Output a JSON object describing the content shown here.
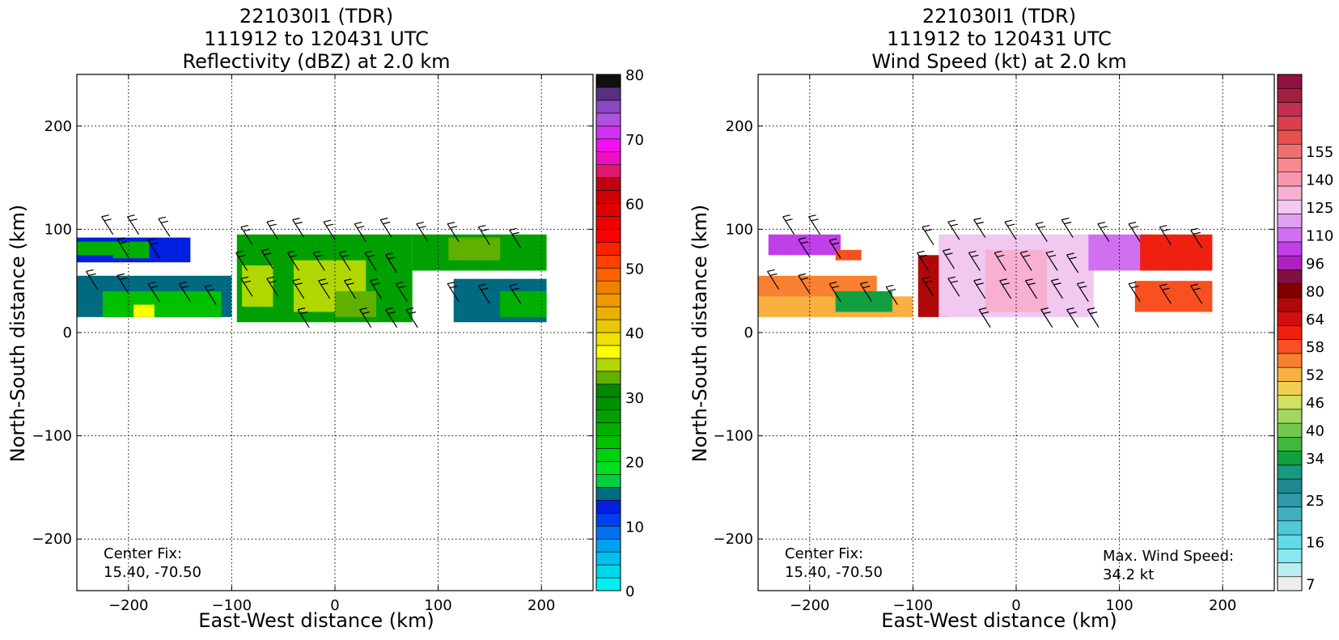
{
  "chart_data": [
    {
      "type": "heatmap",
      "title_lines": [
        "221030I1 (TDR)",
        "111912 to 120431 UTC",
        "Reflectivity (dBZ) at 2.0 km"
      ],
      "xlabel": "East-West distance (km)",
      "ylabel": "North-South distance (km)",
      "xlim": [
        -250,
        250
      ],
      "ylim": [
        -250,
        250
      ],
      "xticks": [
        -200,
        -100,
        0,
        100,
        200
      ],
      "yticks": [
        -200,
        -100,
        0,
        100,
        200
      ],
      "tick_labels_x": [
        "−200",
        "−100",
        "0",
        "100",
        "200"
      ],
      "tick_labels_y": [
        "−200",
        "−100",
        "0",
        "100",
        "200"
      ],
      "grid": true,
      "annotation": {
        "line1": "Center Fix:",
        "line2": "15.40, -70.50"
      },
      "colorbar": {
        "min": 0,
        "max": 80,
        "tick_values": [
          0,
          10,
          20,
          30,
          40,
          50,
          60,
          70,
          80
        ],
        "tick_labels": [
          "0",
          "10",
          "20",
          "30",
          "40",
          "50",
          "60",
          "70",
          "80"
        ],
        "colors": [
          "#00f0f0",
          "#00d8e8",
          "#00c0f0",
          "#00a0f0",
          "#0070f0",
          "#0040f0",
          "#0020e0",
          "#006a80",
          "#00d040",
          "#00e020",
          "#00d010",
          "#00c000",
          "#00b000",
          "#00a000",
          "#009000",
          "#008800",
          "#60b000",
          "#b0d800",
          "#ffff00",
          "#f0e000",
          "#e8c800",
          "#e8b000",
          "#f09800",
          "#f08000",
          "#ff6000",
          "#ff4000",
          "#ff2000",
          "#ff0000",
          "#f00000",
          "#e00000",
          "#d00000",
          "#c00010",
          "#e01870",
          "#ee10c0",
          "#f010f0",
          "#d030f0",
          "#b050e0",
          "#8848c0",
          "#583080",
          "#101010"
        ]
      },
      "echo_regions": [
        {
          "x0": -250,
          "x1": -140,
          "y0": 68,
          "y1": 92,
          "value": 13
        },
        {
          "x0": -215,
          "x1": -180,
          "y0": 72,
          "y1": 88,
          "value": 24
        },
        {
          "x0": -250,
          "x1": -205,
          "y0": 75,
          "y1": 88,
          "value": 25
        },
        {
          "x0": -250,
          "x1": -100,
          "y0": 15,
          "y1": 55,
          "value": 14
        },
        {
          "x0": -225,
          "x1": -110,
          "y0": 15,
          "y1": 40,
          "value": 23
        },
        {
          "x0": -195,
          "x1": -175,
          "y0": 15,
          "y1": 27,
          "value": 36
        },
        {
          "x0": -95,
          "x1": 75,
          "y0": 10,
          "y1": 95,
          "value": 26
        },
        {
          "x0": -90,
          "x1": -60,
          "y0": 25,
          "y1": 65,
          "value": 34
        },
        {
          "x0": -40,
          "x1": 30,
          "y0": 20,
          "y1": 70,
          "value": 34
        },
        {
          "x0": 0,
          "x1": 40,
          "y0": 15,
          "y1": 40,
          "value": 33
        },
        {
          "x0": 75,
          "x1": 205,
          "y0": 60,
          "y1": 95,
          "value": 26
        },
        {
          "x0": 110,
          "x1": 160,
          "y0": 70,
          "y1": 92,
          "value": 33
        },
        {
          "x0": 115,
          "x1": 205,
          "y0": 10,
          "y1": 52,
          "value": 14
        },
        {
          "x0": 160,
          "x1": 205,
          "y0": 15,
          "y1": 40,
          "value": 24
        }
      ],
      "wind_barbs": [
        {
          "x": -215,
          "y": 95
        },
        {
          "x": -190,
          "y": 95
        },
        {
          "x": -160,
          "y": 93
        },
        {
          "x": -200,
          "y": 73
        },
        {
          "x": -170,
          "y": 72
        },
        {
          "x": -230,
          "y": 42
        },
        {
          "x": -200,
          "y": 38
        },
        {
          "x": -170,
          "y": 30
        },
        {
          "x": -140,
          "y": 30
        },
        {
          "x": -115,
          "y": 27
        },
        {
          "x": -80,
          "y": 85
        },
        {
          "x": -55,
          "y": 90
        },
        {
          "x": -30,
          "y": 92
        },
        {
          "x": 0,
          "y": 90
        },
        {
          "x": 30,
          "y": 88
        },
        {
          "x": 55,
          "y": 92
        },
        {
          "x": -85,
          "y": 60
        },
        {
          "x": -60,
          "y": 62
        },
        {
          "x": -35,
          "y": 60
        },
        {
          "x": -10,
          "y": 60
        },
        {
          "x": 15,
          "y": 60
        },
        {
          "x": 40,
          "y": 60
        },
        {
          "x": 60,
          "y": 58
        },
        {
          "x": -80,
          "y": 35
        },
        {
          "x": -55,
          "y": 35
        },
        {
          "x": -30,
          "y": 33
        },
        {
          "x": -5,
          "y": 33
        },
        {
          "x": 20,
          "y": 33
        },
        {
          "x": 45,
          "y": 33
        },
        {
          "x": 70,
          "y": 30
        },
        {
          "x": -25,
          "y": 5
        },
        {
          "x": 35,
          "y": 5
        },
        {
          "x": 60,
          "y": 5
        },
        {
          "x": 80,
          "y": 5
        },
        {
          "x": 90,
          "y": 88
        },
        {
          "x": 120,
          "y": 88
        },
        {
          "x": 150,
          "y": 85
        },
        {
          "x": 180,
          "y": 82
        },
        {
          "x": 120,
          "y": 30
        },
        {
          "x": 150,
          "y": 28
        },
        {
          "x": 180,
          "y": 28
        }
      ]
    },
    {
      "type": "heatmap",
      "title_lines": [
        "221030I1 (TDR)",
        "111912 to 120431 UTC",
        "Wind Speed (kt) at 2.0 km"
      ],
      "xlabel": "East-West distance (km)",
      "ylabel": "North-South distance (km)",
      "xlim": [
        -250,
        250
      ],
      "ylim": [
        -250,
        250
      ],
      "xticks": [
        -200,
        -100,
        0,
        100,
        200
      ],
      "yticks": [
        -200,
        -100,
        0,
        100,
        200
      ],
      "tick_labels_x": [
        "−200",
        "−100",
        "0",
        "100",
        "200"
      ],
      "tick_labels_y": [
        "−200",
        "−100",
        "0",
        "100",
        "200"
      ],
      "grid": true,
      "annotation": {
        "line1": "Center Fix:",
        "line2": "15.40, -70.50"
      },
      "annotation_right": {
        "line1": "Max. Wind Speed:",
        "line2": "34.2 kt"
      },
      "colorbar": {
        "tick_labels": [
          "7",
          "16",
          "25",
          "34",
          "40",
          "46",
          "52",
          "58",
          "64",
          "80",
          "96",
          "110",
          "125",
          "140",
          "155"
        ],
        "tick_bin_index": [
          0,
          3,
          6,
          9,
          11,
          13,
          15,
          17,
          19,
          21,
          23,
          25,
          27,
          29,
          31
        ],
        "colors": [
          "#eeeeee",
          "#b8eeee",
          "#88e8ee",
          "#60dce8",
          "#50c8d8",
          "#40b0c0",
          "#3098a8",
          "#208890",
          "#189a80",
          "#10a040",
          "#40b840",
          "#70c850",
          "#a0d860",
          "#d0e060",
          "#f0d050",
          "#f8b040",
          "#f88030",
          "#f85020",
          "#f02010",
          "#d01010",
          "#b00808",
          "#800000",
          "#801040",
          "#b020c0",
          "#c040e8",
          "#d070f0",
          "#e0a0f0",
          "#f0c8f0",
          "#f8b0d0",
          "#f898b0",
          "#f88890",
          "#f07070",
          "#e85050",
          "#d84050",
          "#c03050",
          "#a02040",
          "#901040"
        ]
      },
      "echo_regions": [
        {
          "x0": -240,
          "x1": -170,
          "y0": 75,
          "y1": 95,
          "value": 24
        },
        {
          "x0": -175,
          "x1": -150,
          "y0": 70,
          "y1": 80,
          "value": 17
        },
        {
          "x0": -250,
          "x1": -135,
          "y0": 30,
          "y1": 55,
          "value": 16
        },
        {
          "x0": -250,
          "x1": -100,
          "y0": 15,
          "y1": 35,
          "value": 15
        },
        {
          "x0": -175,
          "x1": -120,
          "y0": 20,
          "y1": 40,
          "value": 9
        },
        {
          "x0": -95,
          "x1": -65,
          "y0": 15,
          "y1": 75,
          "value": 20
        },
        {
          "x0": -75,
          "x1": 75,
          "y0": 15,
          "y1": 95,
          "value": 27
        },
        {
          "x0": -30,
          "x1": 30,
          "y0": 20,
          "y1": 80,
          "value": 28
        },
        {
          "x0": 70,
          "x1": 130,
          "y0": 60,
          "y1": 95,
          "value": 25
        },
        {
          "x0": 120,
          "x1": 190,
          "y0": 60,
          "y1": 95,
          "value": 18
        },
        {
          "x0": 115,
          "x1": 190,
          "y0": 20,
          "y1": 50,
          "value": 17
        }
      ],
      "wind_barbs": [
        {
          "x": -215,
          "y": 95
        },
        {
          "x": -190,
          "y": 95
        },
        {
          "x": -200,
          "y": 73
        },
        {
          "x": -170,
          "y": 72
        },
        {
          "x": -230,
          "y": 42
        },
        {
          "x": -200,
          "y": 38
        },
        {
          "x": -170,
          "y": 30
        },
        {
          "x": -140,
          "y": 30
        },
        {
          "x": -115,
          "y": 27
        },
        {
          "x": -80,
          "y": 85
        },
        {
          "x": -55,
          "y": 90
        },
        {
          "x": -30,
          "y": 92
        },
        {
          "x": 0,
          "y": 90
        },
        {
          "x": 30,
          "y": 88
        },
        {
          "x": 55,
          "y": 92
        },
        {
          "x": -85,
          "y": 60
        },
        {
          "x": -60,
          "y": 62
        },
        {
          "x": -35,
          "y": 60
        },
        {
          "x": -10,
          "y": 60
        },
        {
          "x": 15,
          "y": 60
        },
        {
          "x": 40,
          "y": 60
        },
        {
          "x": 60,
          "y": 58
        },
        {
          "x": -80,
          "y": 35
        },
        {
          "x": -55,
          "y": 35
        },
        {
          "x": -30,
          "y": 33
        },
        {
          "x": -5,
          "y": 33
        },
        {
          "x": 20,
          "y": 33
        },
        {
          "x": 45,
          "y": 33
        },
        {
          "x": 70,
          "y": 30
        },
        {
          "x": -25,
          "y": 5
        },
        {
          "x": 35,
          "y": 5
        },
        {
          "x": 60,
          "y": 5
        },
        {
          "x": 80,
          "y": 5
        },
        {
          "x": 90,
          "y": 88
        },
        {
          "x": 120,
          "y": 88
        },
        {
          "x": 150,
          "y": 85
        },
        {
          "x": 180,
          "y": 82
        },
        {
          "x": 120,
          "y": 30
        },
        {
          "x": 150,
          "y": 28
        },
        {
          "x": 180,
          "y": 28
        }
      ]
    }
  ]
}
